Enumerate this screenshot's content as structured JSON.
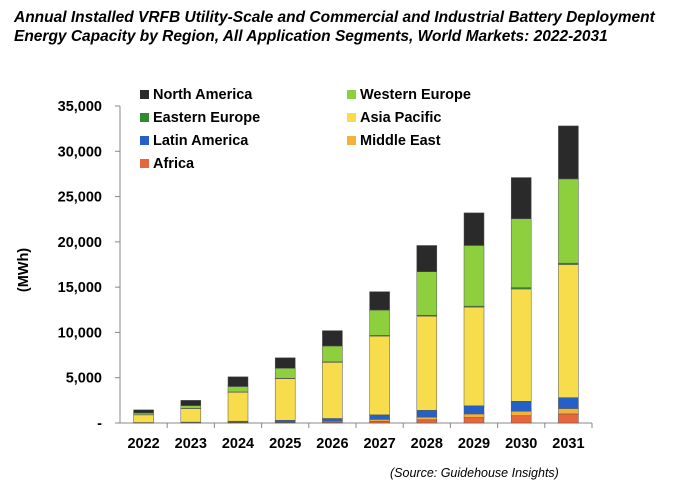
{
  "chart_data": {
    "type": "bar",
    "stacked": true,
    "title": "Annual Installed VRFB Utility-Scale and Commercial and Industrial Battery Deployment Energy Capacity by Region, All Application Segments, World Markets: 2022-2031",
    "xlabel": "",
    "ylabel": "(MWh)",
    "ylim": [
      0,
      35000
    ],
    "yticks": [
      "-",
      "5,000",
      "10,000",
      "15,000",
      "20,000",
      "25,000",
      "30,000",
      "35,000"
    ],
    "categories": [
      "2022",
      "2023",
      "2024",
      "2025",
      "2026",
      "2027",
      "2028",
      "2029",
      "2030",
      "2031"
    ],
    "series": [
      {
        "name": "Africa",
        "color": "#E8663C",
        "values": [
          10,
          20,
          40,
          60,
          100,
          200,
          350,
          600,
          800,
          1000
        ]
      },
      {
        "name": "Middle East",
        "color": "#F5B236",
        "values": [
          10,
          20,
          40,
          60,
          100,
          200,
          300,
          400,
          500,
          600
        ]
      },
      {
        "name": "Latin America",
        "color": "#2460C8",
        "values": [
          30,
          60,
          120,
          180,
          300,
          500,
          750,
          900,
          1100,
          1200
        ]
      },
      {
        "name": "Asia Pacific",
        "color": "#F7DC4B",
        "values": [
          850,
          1500,
          3200,
          4600,
          6200,
          8700,
          10400,
          10900,
          12400,
          14700
        ]
      },
      {
        "name": "Eastern Europe",
        "color": "#2E8B2E",
        "values": [
          10,
          20,
          30,
          40,
          50,
          70,
          100,
          100,
          150,
          150
        ]
      },
      {
        "name": "Western Europe",
        "color": "#8DCF3C",
        "values": [
          200,
          300,
          600,
          1100,
          1750,
          2800,
          4800,
          6700,
          7600,
          9300
        ]
      },
      {
        "name": "North America",
        "color": "#2A2A2A",
        "values": [
          340,
          580,
          1070,
          1160,
          1700,
          2030,
          2900,
          3600,
          4550,
          5850
        ]
      }
    ],
    "legend": [
      {
        "name": "North America",
        "color": "#2A2A2A"
      },
      {
        "name": "Western Europe",
        "color": "#8DCF3C"
      },
      {
        "name": "Eastern Europe",
        "color": "#2E8B2E"
      },
      {
        "name": "Asia Pacific",
        "color": "#F7DC4B"
      },
      {
        "name": "Latin America",
        "color": "#2460C8"
      },
      {
        "name": "Middle East",
        "color": "#F5B236"
      },
      {
        "name": "Africa",
        "color": "#E8663C"
      }
    ],
    "legend_position": "top-left"
  },
  "source": "(Source: Guidehouse Insights)"
}
